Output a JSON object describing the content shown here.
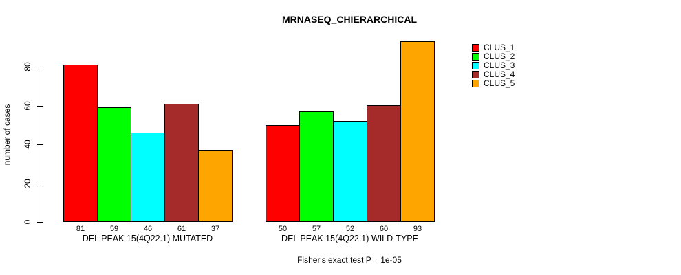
{
  "title": "MRNASEQ_CHIERARCHICAL",
  "y_axis": {
    "label": "number of cases",
    "ticks": [
      0,
      20,
      40,
      60,
      80
    ]
  },
  "footer": "Fisher's exact test P = 1e-05",
  "chart_data": {
    "type": "bar",
    "title": "MRNASEQ_CHIERARCHICAL",
    "ylabel": "number of cases",
    "xlabel": "",
    "categories": [
      "DEL PEAK 15(4Q22.1) MUTATED",
      "DEL PEAK 15(4Q22.1) WILD-TYPE"
    ],
    "series": [
      {
        "name": "CLUS_1",
        "color": "#FF0000",
        "values": [
          81,
          50
        ]
      },
      {
        "name": "CLUS_2",
        "color": "#00FF00",
        "values": [
          59,
          57
        ]
      },
      {
        "name": "CLUS_3",
        "color": "#00FFFF",
        "values": [
          46,
          52
        ]
      },
      {
        "name": "CLUS_4",
        "color": "#A52A2A",
        "values": [
          61,
          60
        ]
      },
      {
        "name": "CLUS_5",
        "color": "#FFA500",
        "values": [
          37,
          93
        ]
      }
    ],
    "bar_value_labels": true,
    "ylim": [
      0,
      80
    ],
    "yticks": [
      0,
      20,
      40,
      60,
      80
    ],
    "grid": false,
    "legend_position": "right",
    "annotation": "Fisher's exact test P = 1e-05",
    "background": "#ffffff",
    "bar_border_color": "#000000"
  }
}
